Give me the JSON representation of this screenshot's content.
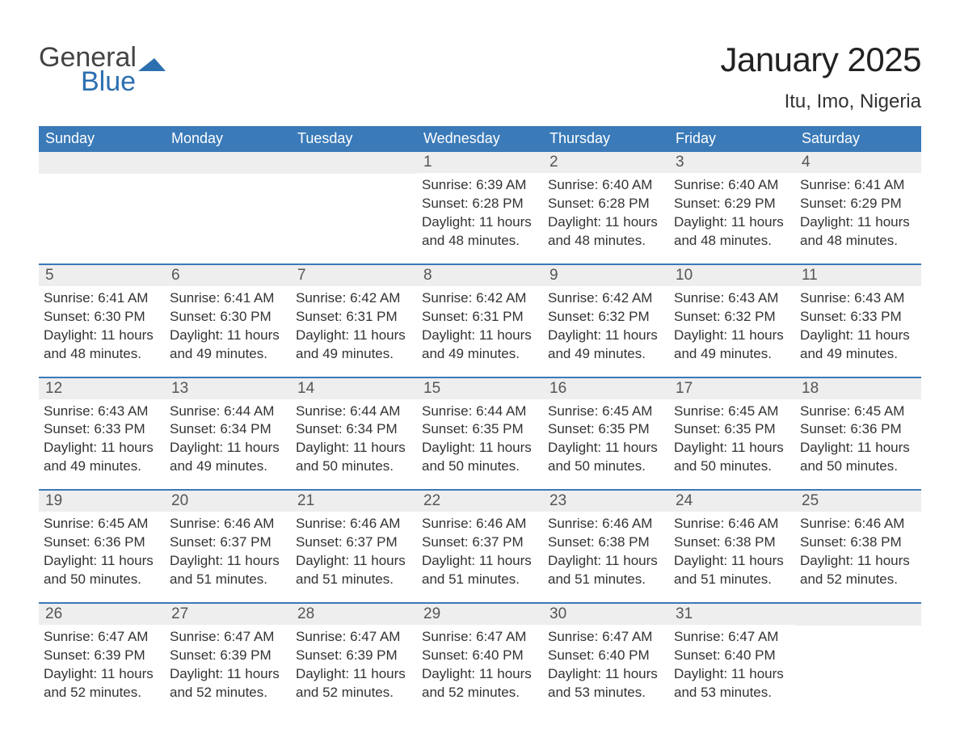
{
  "brand": {
    "general": "General",
    "blue": "Blue"
  },
  "title": "January 2025",
  "location": "Itu, Imo, Nigeria",
  "colors": {
    "header_bg": "#3a7ab8",
    "header_text": "#ffffff",
    "row_divider": "#3a7ab8",
    "band_bg": "#eeeeee",
    "text": "#333333",
    "daynum": "#555555",
    "background": "#ffffff",
    "logo_gray": "#444444",
    "logo_blue": "#2b6fb0"
  },
  "typography": {
    "title_fontsize_pt": 32,
    "location_fontsize_pt": 18,
    "dow_fontsize_pt": 14,
    "daynum_fontsize_pt": 14,
    "body_fontsize_pt": 13,
    "font_family": "Arial"
  },
  "days_of_week": [
    "Sunday",
    "Monday",
    "Tuesday",
    "Wednesday",
    "Thursday",
    "Friday",
    "Saturday"
  ],
  "weeks": [
    [
      null,
      null,
      null,
      {
        "n": "1",
        "sunrise": "Sunrise: 6:39 AM",
        "sunset": "Sunset: 6:28 PM",
        "daylight": "Daylight: 11 hours and 48 minutes."
      },
      {
        "n": "2",
        "sunrise": "Sunrise: 6:40 AM",
        "sunset": "Sunset: 6:28 PM",
        "daylight": "Daylight: 11 hours and 48 minutes."
      },
      {
        "n": "3",
        "sunrise": "Sunrise: 6:40 AM",
        "sunset": "Sunset: 6:29 PM",
        "daylight": "Daylight: 11 hours and 48 minutes."
      },
      {
        "n": "4",
        "sunrise": "Sunrise: 6:41 AM",
        "sunset": "Sunset: 6:29 PM",
        "daylight": "Daylight: 11 hours and 48 minutes."
      }
    ],
    [
      {
        "n": "5",
        "sunrise": "Sunrise: 6:41 AM",
        "sunset": "Sunset: 6:30 PM",
        "daylight": "Daylight: 11 hours and 48 minutes."
      },
      {
        "n": "6",
        "sunrise": "Sunrise: 6:41 AM",
        "sunset": "Sunset: 6:30 PM",
        "daylight": "Daylight: 11 hours and 49 minutes."
      },
      {
        "n": "7",
        "sunrise": "Sunrise: 6:42 AM",
        "sunset": "Sunset: 6:31 PM",
        "daylight": "Daylight: 11 hours and 49 minutes."
      },
      {
        "n": "8",
        "sunrise": "Sunrise: 6:42 AM",
        "sunset": "Sunset: 6:31 PM",
        "daylight": "Daylight: 11 hours and 49 minutes."
      },
      {
        "n": "9",
        "sunrise": "Sunrise: 6:42 AM",
        "sunset": "Sunset: 6:32 PM",
        "daylight": "Daylight: 11 hours and 49 minutes."
      },
      {
        "n": "10",
        "sunrise": "Sunrise: 6:43 AM",
        "sunset": "Sunset: 6:32 PM",
        "daylight": "Daylight: 11 hours and 49 minutes."
      },
      {
        "n": "11",
        "sunrise": "Sunrise: 6:43 AM",
        "sunset": "Sunset: 6:33 PM",
        "daylight": "Daylight: 11 hours and 49 minutes."
      }
    ],
    [
      {
        "n": "12",
        "sunrise": "Sunrise: 6:43 AM",
        "sunset": "Sunset: 6:33 PM",
        "daylight": "Daylight: 11 hours and 49 minutes."
      },
      {
        "n": "13",
        "sunrise": "Sunrise: 6:44 AM",
        "sunset": "Sunset: 6:34 PM",
        "daylight": "Daylight: 11 hours and 49 minutes."
      },
      {
        "n": "14",
        "sunrise": "Sunrise: 6:44 AM",
        "sunset": "Sunset: 6:34 PM",
        "daylight": "Daylight: 11 hours and 50 minutes."
      },
      {
        "n": "15",
        "sunrise": "Sunrise: 6:44 AM",
        "sunset": "Sunset: 6:35 PM",
        "daylight": "Daylight: 11 hours and 50 minutes."
      },
      {
        "n": "16",
        "sunrise": "Sunrise: 6:45 AM",
        "sunset": "Sunset: 6:35 PM",
        "daylight": "Daylight: 11 hours and 50 minutes."
      },
      {
        "n": "17",
        "sunrise": "Sunrise: 6:45 AM",
        "sunset": "Sunset: 6:35 PM",
        "daylight": "Daylight: 11 hours and 50 minutes."
      },
      {
        "n": "18",
        "sunrise": "Sunrise: 6:45 AM",
        "sunset": "Sunset: 6:36 PM",
        "daylight": "Daylight: 11 hours and 50 minutes."
      }
    ],
    [
      {
        "n": "19",
        "sunrise": "Sunrise: 6:45 AM",
        "sunset": "Sunset: 6:36 PM",
        "daylight": "Daylight: 11 hours and 50 minutes."
      },
      {
        "n": "20",
        "sunrise": "Sunrise: 6:46 AM",
        "sunset": "Sunset: 6:37 PM",
        "daylight": "Daylight: 11 hours and 51 minutes."
      },
      {
        "n": "21",
        "sunrise": "Sunrise: 6:46 AM",
        "sunset": "Sunset: 6:37 PM",
        "daylight": "Daylight: 11 hours and 51 minutes."
      },
      {
        "n": "22",
        "sunrise": "Sunrise: 6:46 AM",
        "sunset": "Sunset: 6:37 PM",
        "daylight": "Daylight: 11 hours and 51 minutes."
      },
      {
        "n": "23",
        "sunrise": "Sunrise: 6:46 AM",
        "sunset": "Sunset: 6:38 PM",
        "daylight": "Daylight: 11 hours and 51 minutes."
      },
      {
        "n": "24",
        "sunrise": "Sunrise: 6:46 AM",
        "sunset": "Sunset: 6:38 PM",
        "daylight": "Daylight: 11 hours and 51 minutes."
      },
      {
        "n": "25",
        "sunrise": "Sunrise: 6:46 AM",
        "sunset": "Sunset: 6:38 PM",
        "daylight": "Daylight: 11 hours and 52 minutes."
      }
    ],
    [
      {
        "n": "26",
        "sunrise": "Sunrise: 6:47 AM",
        "sunset": "Sunset: 6:39 PM",
        "daylight": "Daylight: 11 hours and 52 minutes."
      },
      {
        "n": "27",
        "sunrise": "Sunrise: 6:47 AM",
        "sunset": "Sunset: 6:39 PM",
        "daylight": "Daylight: 11 hours and 52 minutes."
      },
      {
        "n": "28",
        "sunrise": "Sunrise: 6:47 AM",
        "sunset": "Sunset: 6:39 PM",
        "daylight": "Daylight: 11 hours and 52 minutes."
      },
      {
        "n": "29",
        "sunrise": "Sunrise: 6:47 AM",
        "sunset": "Sunset: 6:40 PM",
        "daylight": "Daylight: 11 hours and 52 minutes."
      },
      {
        "n": "30",
        "sunrise": "Sunrise: 6:47 AM",
        "sunset": "Sunset: 6:40 PM",
        "daylight": "Daylight: 11 hours and 53 minutes."
      },
      {
        "n": "31",
        "sunrise": "Sunrise: 6:47 AM",
        "sunset": "Sunset: 6:40 PM",
        "daylight": "Daylight: 11 hours and 53 minutes."
      },
      null
    ]
  ]
}
